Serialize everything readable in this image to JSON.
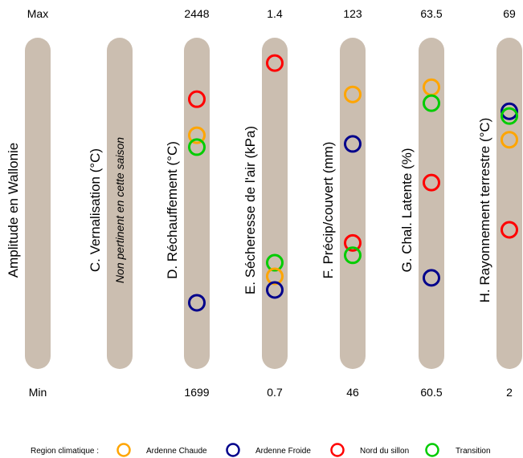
{
  "chart_data": {
    "type": "scatter",
    "title": "",
    "top_label": "Max",
    "bottom_label": "Min",
    "columns": [
      {
        "key": "A",
        "label": "Amplitude en Wallonie",
        "max_label": "",
        "min_label": "",
        "min": null,
        "max": null,
        "note": "",
        "points": []
      },
      {
        "key": "C",
        "label": "C. Vernalisation (°C)",
        "max_label": "",
        "min_label": "",
        "min": null,
        "max": null,
        "note": "Non pertinent en cette saison",
        "points": []
      },
      {
        "key": "D",
        "label": "D. Réchauffement (°C)",
        "max_label": "2448",
        "min_label": "1699",
        "min": 1699,
        "max": 2448,
        "note": "",
        "points": [
          {
            "region": "nord",
            "value": 2320
          },
          {
            "region": "chaude",
            "value": 2235
          },
          {
            "region": "transition",
            "value": 2207
          },
          {
            "region": "froide",
            "value": 1840
          }
        ]
      },
      {
        "key": "E",
        "label": "E. Sécheresse de l'air (kPa)",
        "max_label": "1.4",
        "min_label": "0.7",
        "min": 0.7,
        "max": 1.4,
        "note": "",
        "points": [
          {
            "region": "nord",
            "value": 1.36
          },
          {
            "region": "transition",
            "value": 0.92
          },
          {
            "region": "chaude",
            "value": 0.89
          },
          {
            "region": "froide",
            "value": 0.86
          }
        ]
      },
      {
        "key": "F",
        "label": "F. Précip/couvert (mm)",
        "max_label": "123",
        "min_label": "46",
        "min": 46,
        "max": 123,
        "note": "",
        "points": [
          {
            "region": "chaude",
            "value": 111
          },
          {
            "region": "froide",
            "value": 99
          },
          {
            "region": "nord",
            "value": 75
          },
          {
            "region": "transition",
            "value": 72
          }
        ]
      },
      {
        "key": "G",
        "label": "G. Chal. Latente (%)",
        "max_label": "63.5",
        "min_label": "60.5",
        "min": 60.5,
        "max": 63.5,
        "note": "",
        "points": [
          {
            "region": "chaude",
            "value": 63.1
          },
          {
            "region": "transition",
            "value": 62.95
          },
          {
            "region": "nord",
            "value": 62.2
          },
          {
            "region": "froide",
            "value": 61.3
          }
        ]
      },
      {
        "key": "H",
        "label": "H. Rayonnement terrestre (°C)",
        "max_label": "69",
        "min_label": "2",
        "min": 2,
        "max": 69,
        "note": "",
        "points": [
          {
            "region": "froide",
            "value": 55
          },
          {
            "region": "transition",
            "value": 54
          },
          {
            "region": "chaude",
            "value": 49
          },
          {
            "region": "nord",
            "value": 30
          }
        ]
      }
    ],
    "legend": {
      "title": "Region climatique :",
      "position": "bottom",
      "entries": [
        {
          "region": "chaude",
          "label": "Ardenne Chaude",
          "color": "#FFA500"
        },
        {
          "region": "froide",
          "label": "Ardenne Froide",
          "color": "#00008B"
        },
        {
          "region": "nord",
          "label": "Nord du sillon",
          "color": "#FF0000"
        },
        {
          "region": "transition",
          "label": "Transition",
          "color": "#00CC00"
        }
      ]
    },
    "bar_color": "#CBBEB0"
  }
}
